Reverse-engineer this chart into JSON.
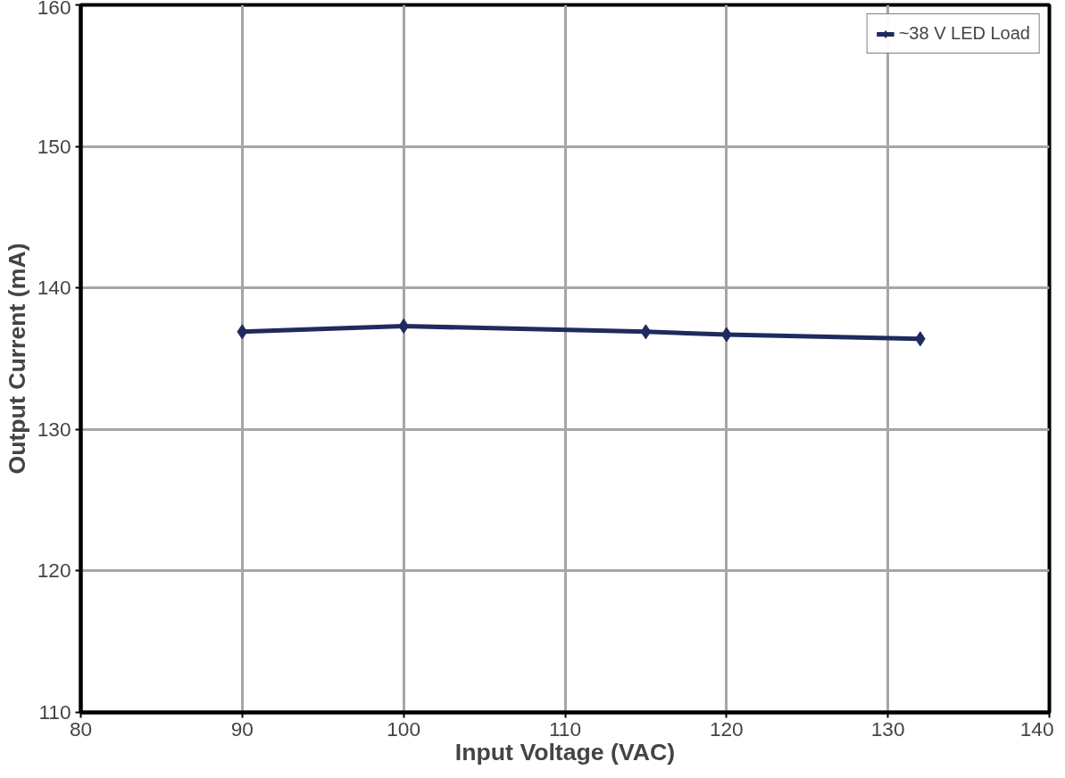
{
  "chart_data": {
    "type": "line",
    "xlabel": "Input Voltage (VAC)",
    "ylabel": "Output Current (mA)",
    "xlim": [
      80,
      140
    ],
    "xticks": [
      80,
      90,
      100,
      110,
      120,
      130,
      140
    ],
    "ylim": [
      110,
      160
    ],
    "yticks": [
      110,
      120,
      130,
      140,
      150,
      160
    ],
    "grid": true,
    "legend": "top right",
    "marker": "diamond",
    "line_style": "solid",
    "series": [
      {
        "name": "~38 V LED Load",
        "color": "#1f2a5e",
        "x": [
          90,
          100,
          115,
          120,
          132
        ],
        "values": [
          136.9,
          137.3,
          136.9,
          136.7,
          136.4
        ]
      }
    ]
  }
}
